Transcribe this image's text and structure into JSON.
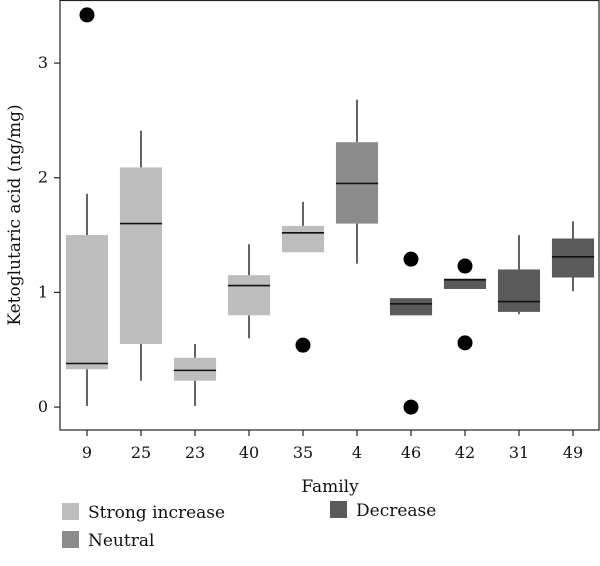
{
  "chart_data": {
    "type": "box",
    "xlabel": "Family",
    "ylabel": "Ketoglutaric acid (ng/mg)",
    "ylim": [
      -0.2,
      3.55
    ],
    "yticks": [
      0,
      1,
      2,
      3
    ],
    "grid": false,
    "legend_position": "bottom",
    "groups": [
      {
        "name": "Strong increase",
        "color": "#bdbdbd"
      },
      {
        "name": "Neutral",
        "color": "#8c8c8c"
      },
      {
        "name": "Decrease",
        "color": "#5a5a5a"
      }
    ],
    "categories": [
      "9",
      "25",
      "23",
      "40",
      "35",
      "4",
      "46",
      "42",
      "31",
      "49"
    ],
    "boxes": [
      {
        "category": "9",
        "group": 0,
        "whisker_low": 0.01,
        "q1": 0.33,
        "median": 0.38,
        "q3": 1.5,
        "whisker_high": 1.86,
        "outliers": [
          3.42
        ]
      },
      {
        "category": "25",
        "group": 0,
        "whisker_low": 0.23,
        "q1": 0.55,
        "median": 1.6,
        "q3": 2.09,
        "whisker_high": 2.41,
        "outliers": []
      },
      {
        "category": "23",
        "group": 0,
        "whisker_low": 0.01,
        "q1": 0.23,
        "median": 0.32,
        "q3": 0.43,
        "whisker_high": 0.55,
        "outliers": []
      },
      {
        "category": "40",
        "group": 0,
        "whisker_low": 0.6,
        "q1": 0.8,
        "median": 1.06,
        "q3": 1.15,
        "whisker_high": 1.42,
        "outliers": []
      },
      {
        "category": "35",
        "group": 0,
        "whisker_low": 1.35,
        "q1": 1.35,
        "median": 1.52,
        "q3": 1.58,
        "whisker_high": 1.79,
        "outliers": [
          0.54
        ]
      },
      {
        "category": "4",
        "group": 1,
        "whisker_low": 1.25,
        "q1": 1.6,
        "median": 1.95,
        "q3": 2.31,
        "whisker_high": 2.68,
        "outliers": []
      },
      {
        "category": "46",
        "group": 2,
        "whisker_low": 0.8,
        "q1": 0.8,
        "median": 0.9,
        "q3": 0.95,
        "whisker_high": 0.95,
        "outliers": [
          1.29,
          0.0
        ]
      },
      {
        "category": "42",
        "group": 2,
        "whisker_low": 1.03,
        "q1": 1.03,
        "median": 1.11,
        "q3": 1.12,
        "whisker_high": 1.12,
        "outliers": [
          1.23,
          0.56
        ]
      },
      {
        "category": "31",
        "group": 2,
        "whisker_low": 0.81,
        "q1": 0.83,
        "median": 0.92,
        "q3": 1.2,
        "whisker_high": 1.5,
        "outliers": []
      },
      {
        "category": "49",
        "group": 2,
        "whisker_low": 1.01,
        "q1": 1.13,
        "median": 1.31,
        "q3": 1.47,
        "whisker_high": 1.62,
        "outliers": []
      }
    ]
  }
}
